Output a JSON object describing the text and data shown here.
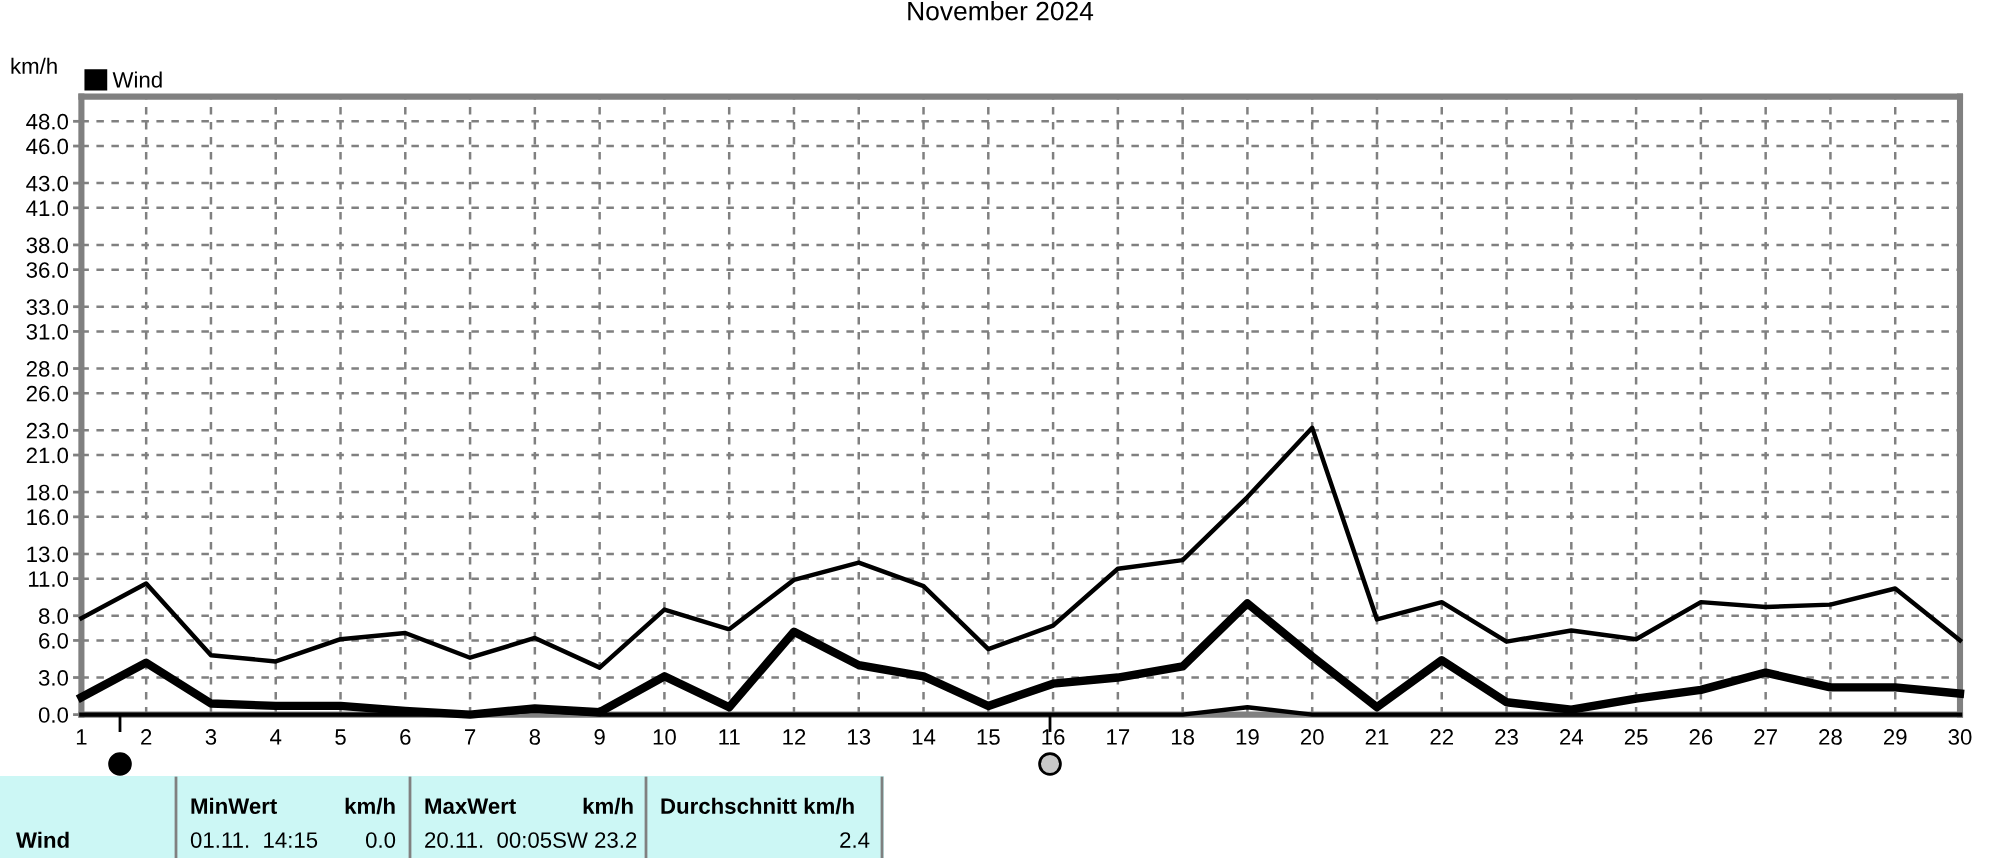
{
  "chart_data": {
    "type": "line",
    "title": "November 2024",
    "ylabel": "km/h",
    "x": [
      1,
      2,
      3,
      4,
      5,
      6,
      7,
      8,
      9,
      10,
      11,
      12,
      13,
      14,
      15,
      16,
      17,
      18,
      19,
      20,
      21,
      22,
      23,
      24,
      25,
      26,
      27,
      28,
      29,
      30
    ],
    "xlim": [
      1,
      30
    ],
    "xticks": [
      1,
      2,
      3,
      4,
      5,
      6,
      7,
      8,
      9,
      10,
      11,
      12,
      13,
      14,
      15,
      16,
      17,
      18,
      19,
      20,
      21,
      22,
      23,
      24,
      25,
      26,
      27,
      28,
      29,
      30
    ],
    "ylim": [
      0,
      50
    ],
    "yticks": [
      {
        "value": 0,
        "label": "0.0"
      },
      {
        "value": 3,
        "label": "3.0"
      },
      {
        "value": 6,
        "label": "6.0"
      },
      {
        "value": 8,
        "label": "8.0"
      },
      {
        "value": 11,
        "label": "11.0"
      },
      {
        "value": 13,
        "label": "13.0"
      },
      {
        "value": 16,
        "label": "16.0"
      },
      {
        "value": 18,
        "label": "18.0"
      },
      {
        "value": 21,
        "label": "21.0"
      },
      {
        "value": 23,
        "label": "23.0"
      },
      {
        "value": 26,
        "label": "26.0"
      },
      {
        "value": 28,
        "label": "28.0"
      },
      {
        "value": 31,
        "label": "31.0"
      },
      {
        "value": 33,
        "label": "33.0"
      },
      {
        "value": 36,
        "label": "36.0"
      },
      {
        "value": 38,
        "label": "38.0"
      },
      {
        "value": 41,
        "label": "41.0"
      },
      {
        "value": 43,
        "label": "43.0"
      },
      {
        "value": 46,
        "label": "46.0"
      },
      {
        "value": 48,
        "label": "48.0"
      }
    ],
    "grid": true,
    "legend": "top left",
    "series": [
      {
        "color": "#000000",
        "values": [
          7.8,
          10.6,
          4.8,
          4.3,
          6.1,
          6.6,
          4.6,
          6.2,
          3.8,
          8.5,
          6.9,
          10.9,
          12.3,
          10.4,
          5.3,
          7.2,
          11.8,
          12.5,
          17.6,
          23.2,
          7.7,
          9.1,
          5.9,
          6.8,
          6.1,
          9.1,
          8.7,
          8.9,
          10.2,
          6.0
        ]
      },
      {
        "name": "Wind",
        "color": "#000000",
        "values": [
          1.4,
          4.2,
          0.9,
          0.7,
          0.7,
          0.3,
          0.0,
          0.5,
          0.2,
          3.1,
          0.6,
          6.7,
          4.0,
          3.1,
          0.7,
          2.5,
          3.0,
          3.9,
          9.0,
          4.7,
          0.6,
          4.4,
          1.0,
          0.4,
          1.3,
          2.0,
          3.4,
          2.2,
          2.2,
          1.7
        ]
      },
      {
        "color": "#000000",
        "values": [
          0,
          0,
          0,
          0,
          0,
          0,
          0,
          0.3,
          0,
          0,
          0,
          0,
          0,
          0,
          0,
          0,
          0,
          0,
          0.6,
          0,
          0,
          0,
          0,
          0,
          0,
          0,
          0,
          0,
          0,
          0
        ]
      }
    ],
    "annotations": [
      "Wind",
      "MinWert",
      "km/h",
      "01.11.  14:15",
      "0.0",
      "MaxWert",
      "km/h",
      "20.11.  00:05SW 23.2",
      "Durchschnitt km/h",
      "2.4"
    ]
  }
}
